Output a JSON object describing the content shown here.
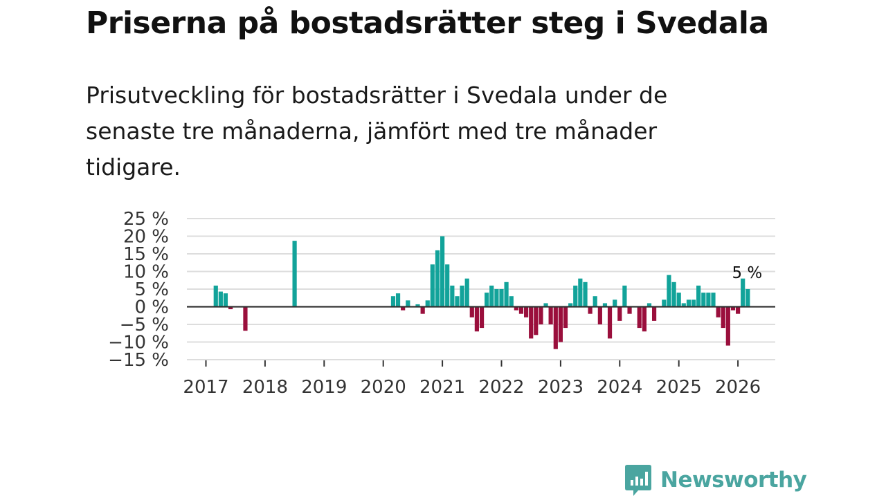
{
  "header": {
    "title": "Priserna på bostadsrätter steg i Svedala",
    "subtitle": "Prisutveckling för bostadsrätter i Svedala under de senaste tre månaderna, jämfört med tre månader tidigare."
  },
  "brand": {
    "name": "Newsworthy",
    "color": "#4aa5a0"
  },
  "colors": {
    "positive": "#12a39a",
    "negative": "#9a0f3c",
    "grid": "#dddddd",
    "zero": "#333333"
  },
  "chart_data": {
    "type": "bar",
    "title": "",
    "xlabel": "",
    "ylabel": "",
    "ylim": [
      -15,
      25
    ],
    "yticks": [
      25,
      20,
      15,
      10,
      5,
      0,
      -5,
      -10,
      -15
    ],
    "ytick_labels": [
      "25 %",
      "20 %",
      "15 %",
      "10 %",
      "5 %",
      "0 %",
      "−5 %",
      "−10 %",
      "−15 %"
    ],
    "xticks": [
      2017,
      2018,
      2019,
      2020,
      2021,
      2022,
      2023,
      2024,
      2025,
      2026
    ],
    "xtick_labels": [
      "2017",
      "2018",
      "2019",
      "2020",
      "2021",
      "2022",
      "2023",
      "2024",
      "2025",
      "2026"
    ],
    "annotation": {
      "label": "5 %",
      "date": 2026.167
    },
    "series": [
      {
        "name": "Prisutveckling",
        "points": [
          {
            "date": 2017.167,
            "value": 6
          },
          {
            "date": 2017.25,
            "value": 4.3
          },
          {
            "date": 2017.333,
            "value": 3.8
          },
          {
            "date": 2017.417,
            "value": -0.7
          },
          {
            "date": 2017.667,
            "value": -6.8
          },
          {
            "date": 2018.5,
            "value": 18.7
          },
          {
            "date": 2020.167,
            "value": 3
          },
          {
            "date": 2020.25,
            "value": 3.8
          },
          {
            "date": 2020.333,
            "value": -1
          },
          {
            "date": 2020.417,
            "value": 1.8
          },
          {
            "date": 2020.583,
            "value": 0.7
          },
          {
            "date": 2020.667,
            "value": -2
          },
          {
            "date": 2020.75,
            "value": 1.8
          },
          {
            "date": 2020.833,
            "value": 12
          },
          {
            "date": 2020.917,
            "value": 16
          },
          {
            "date": 2021.0,
            "value": 20
          },
          {
            "date": 2021.083,
            "value": 12
          },
          {
            "date": 2021.167,
            "value": 6
          },
          {
            "date": 2021.25,
            "value": 3
          },
          {
            "date": 2021.333,
            "value": 6
          },
          {
            "date": 2021.417,
            "value": 8
          },
          {
            "date": 2021.5,
            "value": -3
          },
          {
            "date": 2021.583,
            "value": -7
          },
          {
            "date": 2021.667,
            "value": -6
          },
          {
            "date": 2021.75,
            "value": 4
          },
          {
            "date": 2021.833,
            "value": 6
          },
          {
            "date": 2021.917,
            "value": 5
          },
          {
            "date": 2022.0,
            "value": 5
          },
          {
            "date": 2022.083,
            "value": 7
          },
          {
            "date": 2022.167,
            "value": 3
          },
          {
            "date": 2022.25,
            "value": -1
          },
          {
            "date": 2022.333,
            "value": -2
          },
          {
            "date": 2022.417,
            "value": -3
          },
          {
            "date": 2022.5,
            "value": -9
          },
          {
            "date": 2022.583,
            "value": -8
          },
          {
            "date": 2022.667,
            "value": -5
          },
          {
            "date": 2022.75,
            "value": 1
          },
          {
            "date": 2022.833,
            "value": -5
          },
          {
            "date": 2022.917,
            "value": -12
          },
          {
            "date": 2023.0,
            "value": -10
          },
          {
            "date": 2023.083,
            "value": -6
          },
          {
            "date": 2023.167,
            "value": 1
          },
          {
            "date": 2023.25,
            "value": 6
          },
          {
            "date": 2023.333,
            "value": 8
          },
          {
            "date": 2023.417,
            "value": 7
          },
          {
            "date": 2023.5,
            "value": -2
          },
          {
            "date": 2023.583,
            "value": 3
          },
          {
            "date": 2023.667,
            "value": -5
          },
          {
            "date": 2023.75,
            "value": 1
          },
          {
            "date": 2023.833,
            "value": -9
          },
          {
            "date": 2023.917,
            "value": 2
          },
          {
            "date": 2024.0,
            "value": -4
          },
          {
            "date": 2024.083,
            "value": 6
          },
          {
            "date": 2024.167,
            "value": -2
          },
          {
            "date": 2024.333,
            "value": -6
          },
          {
            "date": 2024.417,
            "value": -7
          },
          {
            "date": 2024.5,
            "value": 1
          },
          {
            "date": 2024.583,
            "value": -4
          },
          {
            "date": 2024.75,
            "value": 2
          },
          {
            "date": 2024.833,
            "value": 9
          },
          {
            "date": 2024.917,
            "value": 7
          },
          {
            "date": 2025.0,
            "value": 4
          },
          {
            "date": 2025.083,
            "value": 1
          },
          {
            "date": 2025.167,
            "value": 2
          },
          {
            "date": 2025.25,
            "value": 2
          },
          {
            "date": 2025.333,
            "value": 6
          },
          {
            "date": 2025.417,
            "value": 4
          },
          {
            "date": 2025.5,
            "value": 4
          },
          {
            "date": 2025.583,
            "value": 4
          },
          {
            "date": 2025.667,
            "value": -3
          },
          {
            "date": 2025.75,
            "value": -6
          },
          {
            "date": 2025.833,
            "value": -11
          },
          {
            "date": 2025.917,
            "value": -1
          },
          {
            "date": 2026.0,
            "value": -2
          },
          {
            "date": 2026.083,
            "value": 8
          },
          {
            "date": 2026.167,
            "value": 5
          }
        ]
      }
    ]
  }
}
